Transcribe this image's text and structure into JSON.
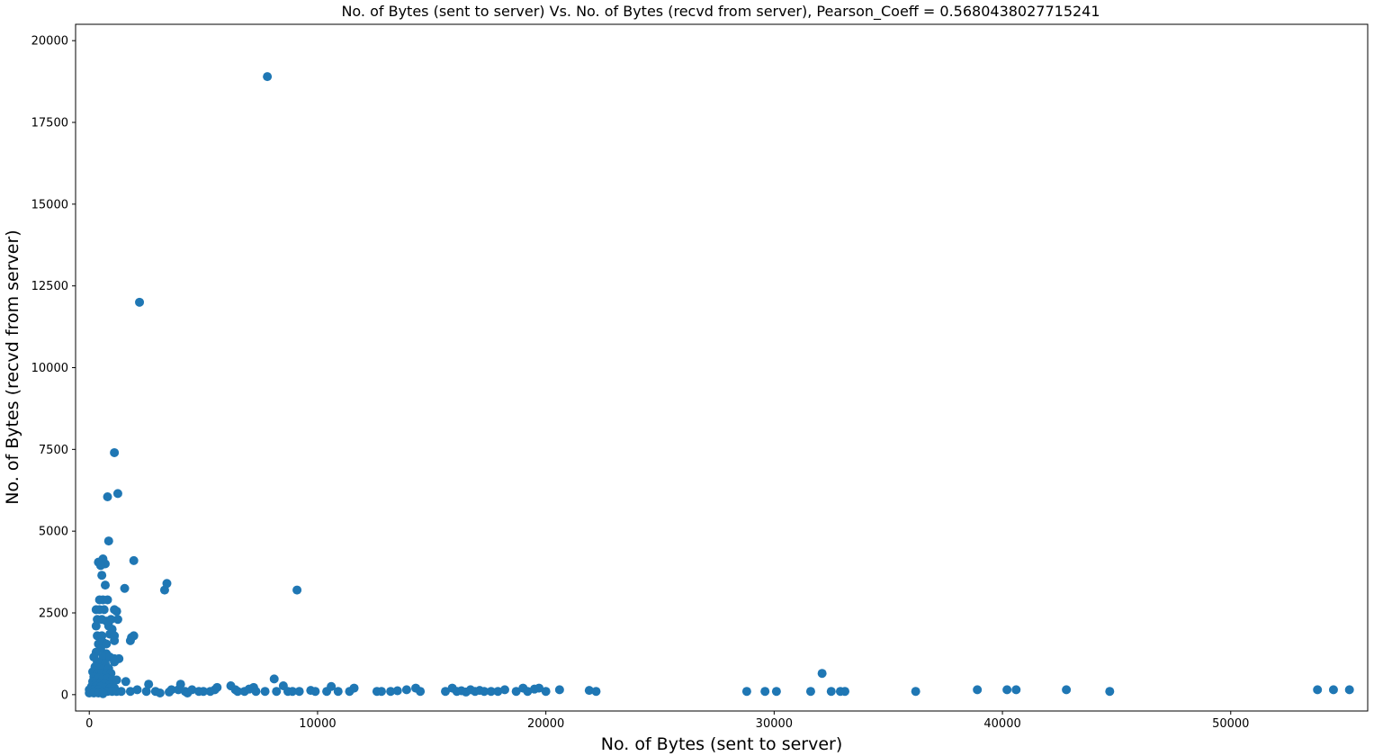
{
  "chart_data": {
    "type": "scatter",
    "title": "No. of Bytes (sent to server) Vs. No. of Bytes (recvd from server), Pearson_Coeff = 0.5680438027715241",
    "xlabel": "No. of Bytes (sent to server)",
    "ylabel": "No. of Bytes (recvd from server)",
    "xlim": [
      -600,
      56000
    ],
    "ylim": [
      -500,
      20500
    ],
    "xticks": [
      0,
      10000,
      20000,
      30000,
      40000,
      50000
    ],
    "yticks": [
      0,
      2500,
      5000,
      7500,
      10000,
      12500,
      15000,
      17500,
      20000
    ],
    "xtick_labels": [
      "0",
      "10000",
      "20000",
      "30000",
      "40000",
      "50000"
    ],
    "ytick_labels": [
      "0",
      "2500",
      "5000",
      "7500",
      "10000",
      "12500",
      "15000",
      "17500",
      "20000"
    ],
    "grid": false,
    "marker_color": "#1f77b4",
    "points": [
      [
        7800,
        18900
      ],
      [
        2200,
        12000
      ],
      [
        1100,
        7400
      ],
      [
        1250,
        6150
      ],
      [
        800,
        6050
      ],
      [
        850,
        4700
      ],
      [
        600,
        4150
      ],
      [
        400,
        4050
      ],
      [
        700,
        4000
      ],
      [
        500,
        3950
      ],
      [
        1950,
        4100
      ],
      [
        550,
        3650
      ],
      [
        1550,
        3250
      ],
      [
        3300,
        3200
      ],
      [
        3400,
        3400
      ],
      [
        9100,
        3200
      ],
      [
        700,
        3350
      ],
      [
        450,
        2900
      ],
      [
        600,
        2900
      ],
      [
        800,
        2900
      ],
      [
        300,
        2600
      ],
      [
        450,
        2600
      ],
      [
        650,
        2600
      ],
      [
        1100,
        2600
      ],
      [
        1200,
        2550
      ],
      [
        350,
        2300
      ],
      [
        550,
        2300
      ],
      [
        750,
        2250
      ],
      [
        950,
        2300
      ],
      [
        1250,
        2300
      ],
      [
        300,
        2100
      ],
      [
        850,
        2100
      ],
      [
        1000,
        2000
      ],
      [
        1950,
        1800
      ],
      [
        1850,
        1750
      ],
      [
        1800,
        1650
      ],
      [
        350,
        1800
      ],
      [
        550,
        1800
      ],
      [
        900,
        1850
      ],
      [
        1100,
        1800
      ],
      [
        1100,
        1650
      ],
      [
        400,
        1550
      ],
      [
        600,
        1600
      ],
      [
        750,
        1550
      ],
      [
        500,
        1400
      ],
      [
        300,
        1300
      ],
      [
        750,
        1250
      ],
      [
        600,
        1150
      ],
      [
        200,
        1150
      ],
      [
        900,
        1150
      ],
      [
        1100,
        1100
      ],
      [
        1300,
        1100
      ],
      [
        350,
        1000
      ],
      [
        500,
        950
      ],
      [
        700,
        950
      ],
      [
        1100,
        1000
      ],
      [
        250,
        850
      ],
      [
        450,
        800
      ],
      [
        650,
        800
      ],
      [
        850,
        800
      ],
      [
        150,
        700
      ],
      [
        350,
        650
      ],
      [
        550,
        650
      ],
      [
        750,
        650
      ],
      [
        950,
        650
      ],
      [
        200,
        550
      ],
      [
        400,
        500
      ],
      [
        600,
        500
      ],
      [
        800,
        500
      ],
      [
        1000,
        450
      ],
      [
        1200,
        450
      ],
      [
        1600,
        400
      ],
      [
        150,
        400
      ],
      [
        300,
        350
      ],
      [
        500,
        350
      ],
      [
        700,
        350
      ],
      [
        900,
        300
      ],
      [
        100,
        250
      ],
      [
        300,
        250
      ],
      [
        500,
        250
      ],
      [
        700,
        200
      ],
      [
        900,
        200
      ],
      [
        1100,
        200
      ],
      [
        0,
        150
      ],
      [
        200,
        150
      ],
      [
        400,
        150
      ],
      [
        600,
        100
      ],
      [
        800,
        100
      ],
      [
        1000,
        100
      ],
      [
        1200,
        100
      ],
      [
        1400,
        100
      ],
      [
        0,
        50
      ],
      [
        200,
        50
      ],
      [
        400,
        50
      ],
      [
        600,
        30
      ],
      [
        1800,
        100
      ],
      [
        2100,
        150
      ],
      [
        2500,
        100
      ],
      [
        2600,
        320
      ],
      [
        2900,
        100
      ],
      [
        3100,
        50
      ],
      [
        3500,
        80
      ],
      [
        3600,
        150
      ],
      [
        3900,
        150
      ],
      [
        4000,
        320
      ],
      [
        4200,
        100
      ],
      [
        4300,
        50
      ],
      [
        4500,
        150
      ],
      [
        4800,
        100
      ],
      [
        5000,
        100
      ],
      [
        5300,
        100
      ],
      [
        5500,
        150
      ],
      [
        5600,
        220
      ],
      [
        6200,
        270
      ],
      [
        6400,
        150
      ],
      [
        6500,
        100
      ],
      [
        6800,
        100
      ],
      [
        7000,
        170
      ],
      [
        7200,
        220
      ],
      [
        7300,
        100
      ],
      [
        7700,
        100
      ],
      [
        8100,
        480
      ],
      [
        8200,
        100
      ],
      [
        8500,
        270
      ],
      [
        8700,
        100
      ],
      [
        8900,
        100
      ],
      [
        9200,
        100
      ],
      [
        9700,
        130
      ],
      [
        9900,
        100
      ],
      [
        10400,
        100
      ],
      [
        10600,
        250
      ],
      [
        10900,
        100
      ],
      [
        11400,
        100
      ],
      [
        11600,
        200
      ],
      [
        12600,
        100
      ],
      [
        12800,
        100
      ],
      [
        13200,
        100
      ],
      [
        13500,
        120
      ],
      [
        13900,
        150
      ],
      [
        14300,
        200
      ],
      [
        14500,
        100
      ],
      [
        15600,
        100
      ],
      [
        15900,
        200
      ],
      [
        16100,
        100
      ],
      [
        16300,
        120
      ],
      [
        16500,
        80
      ],
      [
        16700,
        150
      ],
      [
        16900,
        100
      ],
      [
        17100,
        130
      ],
      [
        17300,
        100
      ],
      [
        17600,
        100
      ],
      [
        17900,
        100
      ],
      [
        18200,
        150
      ],
      [
        18700,
        100
      ],
      [
        19000,
        200
      ],
      [
        19200,
        100
      ],
      [
        19500,
        170
      ],
      [
        19700,
        200
      ],
      [
        20000,
        100
      ],
      [
        20600,
        150
      ],
      [
        21900,
        130
      ],
      [
        22200,
        100
      ],
      [
        28800,
        100
      ],
      [
        29600,
        100
      ],
      [
        30100,
        100
      ],
      [
        31600,
        100
      ],
      [
        32100,
        650
      ],
      [
        32500,
        100
      ],
      [
        32900,
        100
      ],
      [
        33100,
        100
      ],
      [
        36200,
        100
      ],
      [
        38900,
        150
      ],
      [
        40200,
        150
      ],
      [
        40600,
        150
      ],
      [
        42800,
        150
      ],
      [
        44700,
        100
      ],
      [
        53800,
        150
      ],
      [
        54500,
        150
      ],
      [
        55200,
        150
      ]
    ]
  }
}
